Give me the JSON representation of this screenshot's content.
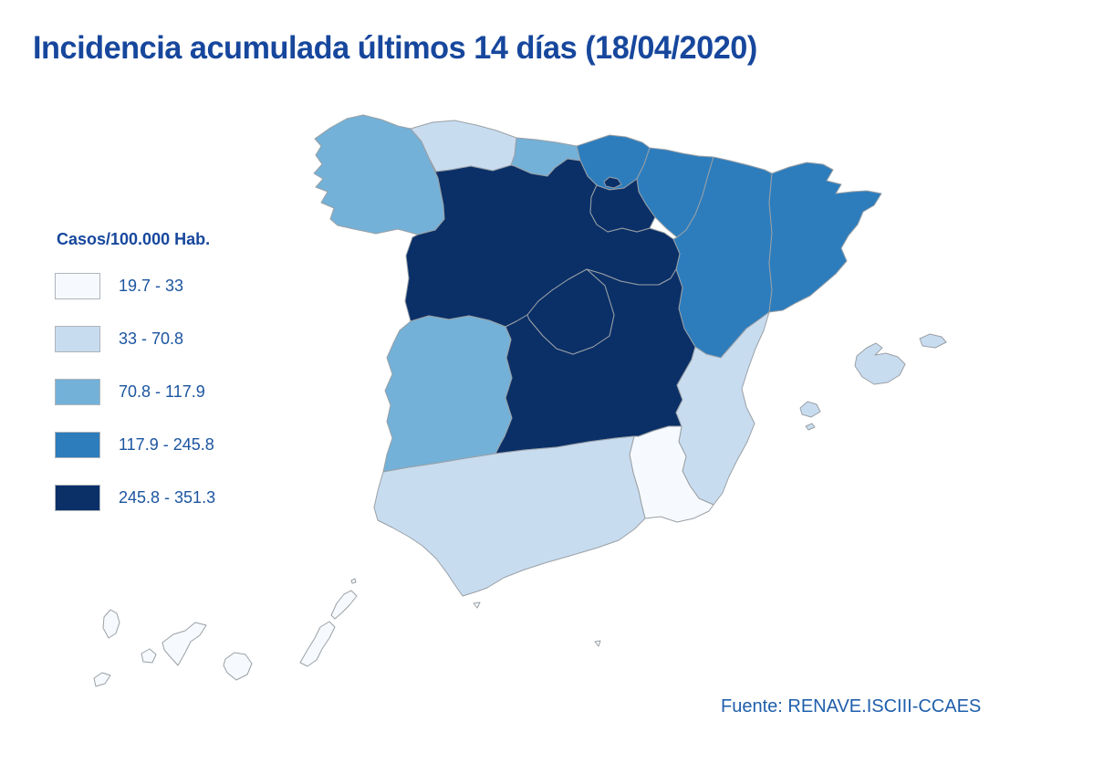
{
  "title": "Incidencia acumulada últimos 14 días (18/04/2020)",
  "legend": {
    "title": "Casos/100.000 Hab.",
    "classes": [
      {
        "label": "19.7 - 33",
        "color": "#f6fafe"
      },
      {
        "label": "33 - 70.8",
        "color": "#c8dcf0"
      },
      {
        "label": "70.8 - 117.9",
        "color": "#73b1d8"
      },
      {
        "label": "117.9 - 245.8",
        "color": "#2d7dbd"
      },
      {
        "label": "245.8 - 351.3",
        "color": "#0b3068"
      }
    ]
  },
  "source": "Fuente: RENAVE.ISCIII-CCAES",
  "map": {
    "border_color": "#9aa0a5",
    "sea_color": "#ffffff"
  },
  "chart_data": {
    "type": "choropleth",
    "title": "Incidencia acumulada últimos 14 días (18/04/2020)",
    "unit": "Casos/100.000 Hab.",
    "class_breaks": [
      19.7,
      33,
      70.8,
      117.9,
      245.8,
      351.3
    ],
    "legend_position": "left",
    "source": "Fuente: RENAVE.ISCIII-CCAES",
    "regions": [
      {
        "key": "galicia",
        "name": "Galicia",
        "range": "70.8 - 117.9",
        "class_index": 2
      },
      {
        "key": "asturias",
        "name": "Asturias",
        "range": "33 - 70.8",
        "class_index": 1
      },
      {
        "key": "cantabria",
        "name": "Cantabria",
        "range": "70.8 - 117.9",
        "class_index": 2
      },
      {
        "key": "pais-vasco",
        "name": "País Vasco",
        "range": "117.9 - 245.8",
        "class_index": 3
      },
      {
        "key": "navarra",
        "name": "Navarra",
        "range": "117.9 - 245.8",
        "class_index": 3
      },
      {
        "key": "aragon",
        "name": "Aragón",
        "range": "117.9 - 245.8",
        "class_index": 3
      },
      {
        "key": "cataluna",
        "name": "Cataluña",
        "range": "117.9 - 245.8",
        "class_index": 3
      },
      {
        "key": "castilla-y-leon",
        "name": "Castilla y León",
        "range": "245.8 - 351.3",
        "class_index": 4
      },
      {
        "key": "la-rioja",
        "name": "La Rioja",
        "range": "245.8 - 351.3",
        "class_index": 4
      },
      {
        "key": "castilla-la-mancha",
        "name": "Castilla-La Mancha",
        "range": "245.8 - 351.3",
        "class_index": 4
      },
      {
        "key": "madrid",
        "name": "Comunidad de Madrid",
        "range": "245.8 - 351.3",
        "class_index": 4
      },
      {
        "key": "extremadura",
        "name": "Extremadura",
        "range": "70.8 - 117.9",
        "class_index": 2
      },
      {
        "key": "valencia",
        "name": "Comunidad Valenciana",
        "range": "33 - 70.8",
        "class_index": 1
      },
      {
        "key": "murcia",
        "name": "Región de Murcia",
        "range": "19.7 - 33",
        "class_index": 0
      },
      {
        "key": "andalucia",
        "name": "Andalucía",
        "range": "33 - 70.8",
        "class_index": 1
      },
      {
        "key": "baleares",
        "name": "Islas Baleares",
        "range": "33 - 70.8",
        "class_index": 1,
        "parts": [
          "mallorca",
          "menorca",
          "ibiza",
          "formentera"
        ]
      },
      {
        "key": "canarias",
        "name": "Canarias",
        "range": "19.7 - 33",
        "class_index": 0,
        "parts": [
          "la-palma",
          "el-hierro",
          "la-gomera",
          "tenerife",
          "gran-canaria",
          "fuerteventura",
          "lanzarote",
          "islote-norte"
        ]
      },
      {
        "key": "trevino",
        "name": "Enclave de Treviño (Castilla y León)",
        "range": "245.8 - 351.3",
        "class_index": 4
      },
      {
        "key": "ceuta",
        "name": "Ceuta",
        "range": "19.7 - 33",
        "class_index": 0
      },
      {
        "key": "melilla",
        "name": "Melilla",
        "range": "19.7 - 33",
        "class_index": 0
      }
    ]
  }
}
